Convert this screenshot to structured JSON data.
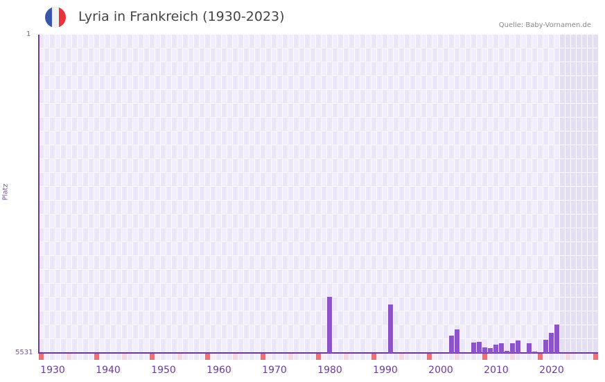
{
  "header": {
    "title": "Lyria in Frankreich (1930-2023)",
    "source": "Quelle: Baby-Vornamen.de",
    "flag": "france-flag"
  },
  "colors": {
    "bar": "#8b55c8",
    "axis": "#6a3a9a",
    "grid_a": "#f2eefb",
    "grid_b": "#ebe6f7",
    "future": "#e3dff0",
    "decade_marker": "#e57373",
    "half_marker": "#f5d6e0"
  },
  "chart_data": {
    "type": "bar",
    "title": "Lyria in Frankreich (1930-2023)",
    "xlabel": "",
    "ylabel": "Platz",
    "y_inverted": true,
    "ylim": [
      1,
      5531
    ],
    "y_ticks": [
      "1",
      "5531"
    ],
    "x_ticks": [
      "1930",
      "1940",
      "1950",
      "1960",
      "1970",
      "1980",
      "1990",
      "2000",
      "2010",
      "2020"
    ],
    "x_range": [
      1928,
      2028
    ],
    "grid": true,
    "categories": [
      1980,
      1991,
      2002,
      2003,
      2006,
      2007,
      2008,
      2009,
      2010,
      2011,
      2012,
      2013,
      2014,
      2016,
      2017,
      2019,
      2020,
      2021
    ],
    "values": [
      4558,
      4690,
      5231,
      5123,
      5351,
      5339,
      5435,
      5447,
      5387,
      5363,
      5495,
      5363,
      5315,
      5363,
      5507,
      5303,
      5183,
      5039
    ]
  }
}
